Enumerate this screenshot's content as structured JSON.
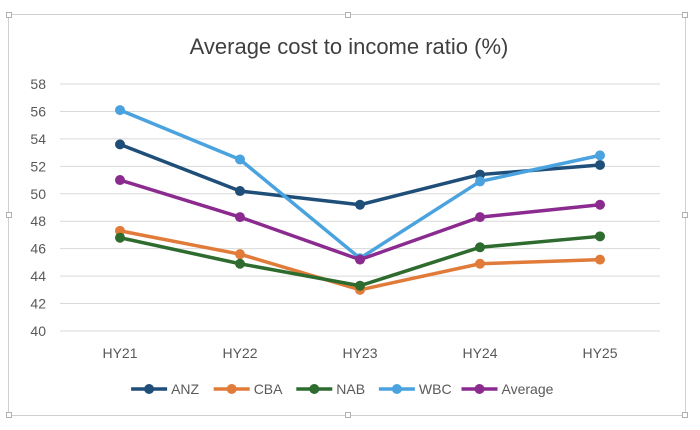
{
  "chart_data": {
    "type": "line",
    "title": "Average cost to income ratio (%)",
    "categories": [
      "HY21",
      "HY22",
      "HY23",
      "HY24",
      "HY25"
    ],
    "ylim": [
      40,
      58
    ],
    "yticks": [
      "40",
      "42",
      "44",
      "46",
      "48",
      "50",
      "52",
      "54",
      "56",
      "58"
    ],
    "grid": true,
    "legend_position": "bottom",
    "series": [
      {
        "name": "ANZ",
        "color": "#1f4e79",
        "values": [
          53.6,
          50.2,
          49.2,
          51.4,
          52.1
        ]
      },
      {
        "name": "CBA",
        "color": "#e07b39",
        "values": [
          47.3,
          45.6,
          43.0,
          44.9,
          45.2
        ]
      },
      {
        "name": "NAB",
        "color": "#2e6b2e",
        "values": [
          46.8,
          44.9,
          43.3,
          46.1,
          46.9
        ]
      },
      {
        "name": "WBC",
        "color": "#4aa3df",
        "values": [
          56.1,
          52.5,
          45.3,
          50.9,
          52.8
        ]
      },
      {
        "name": "Average",
        "color": "#8b2a8f",
        "values": [
          51.0,
          48.3,
          45.2,
          48.3,
          49.2
        ]
      }
    ]
  }
}
